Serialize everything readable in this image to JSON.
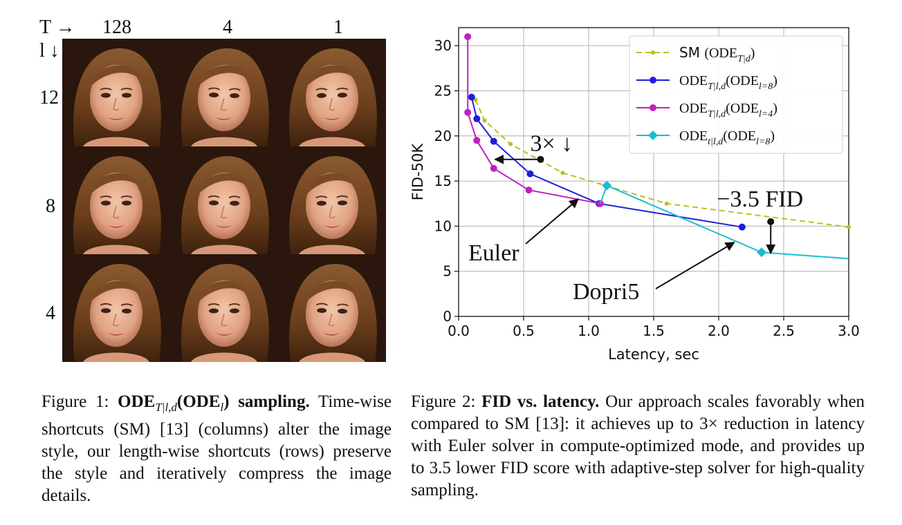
{
  "figure1": {
    "top_axis_label": "T →",
    "left_axis_label": "l ↓",
    "columns": [
      "128",
      "4",
      "1"
    ],
    "rows": [
      "12",
      "8",
      "4"
    ],
    "caption_number": "Figure 1:",
    "caption_title_main": "ODE",
    "caption_title_sub": "T|l,d",
    "caption_title_paren_main": "ODE",
    "caption_title_paren_sub": "l",
    "caption_title_tail": "sampling.",
    "caption_body": "Time-wise shortcuts (SM) [13] (columns) alter the image style, our length-wise shortcuts (rows) preserve the style and iteratively compress the image details."
  },
  "figure2": {
    "caption_number": "Figure 2:",
    "caption_title": "FID vs. latency.",
    "caption_body": "Our approach scales favorably when compared to SM [13]: it achieves up to 3× reduction in latency with Euler solver in compute-optimized mode, and provides up to 3.5 lower FID score with adaptive-step solver for high-quality sampling."
  },
  "chart_data": {
    "type": "line",
    "xlabel": "Latency, sec",
    "ylabel": "FID-50K",
    "xlim": [
      0.0,
      3.0
    ],
    "ylim": [
      0,
      32
    ],
    "xticks": [
      "0.0",
      "0.5",
      "1.0",
      "1.5",
      "2.0",
      "2.5",
      "3.0"
    ],
    "yticks": [
      "0",
      "5",
      "10",
      "15",
      "20",
      "25",
      "30"
    ],
    "grid": true,
    "legend_position": "top-right",
    "series": [
      {
        "name": "SM (ODE_{T|d})",
        "legend_main": "SM",
        "legend_paren": "(ODE",
        "legend_sub": "T|d",
        "legend_tail": ")",
        "color": "#bcbd22",
        "dashed": true,
        "marker": "small-circle",
        "x": [
          0.13,
          0.2,
          0.4,
          0.8,
          1.6,
          3.0
        ],
        "y": [
          24.0,
          21.7,
          19.1,
          15.9,
          12.5,
          9.9
        ]
      },
      {
        "name": "ODE_{T|l,d}(ODE_{l=8})",
        "legend_main": "ODE",
        "legend_sub": "T|l,d",
        "legend_paren": "(ODE",
        "legend_sub2": "l=8",
        "legend_tail": ")",
        "color": "#1f1fd6",
        "dashed": false,
        "marker": "circle",
        "x": [
          0.1,
          0.14,
          0.27,
          0.55,
          1.08,
          2.18
        ],
        "y": [
          24.3,
          21.9,
          19.4,
          15.8,
          12.5,
          9.9
        ]
      },
      {
        "name": "ODE_{T|l,d}(ODE_{l=4})",
        "legend_main": "ODE",
        "legend_sub": "T|l,d",
        "legend_paren": "(ODE",
        "legend_sub2": "l=4",
        "legend_tail": ")",
        "color": "#c020c0",
        "dashed": false,
        "marker": "circle",
        "x": [
          0.07,
          0.07,
          0.14,
          0.27,
          0.54,
          1.09
        ],
        "y": [
          31.0,
          22.6,
          19.5,
          16.4,
          14.0,
          12.5
        ]
      },
      {
        "name": "ODE_{t|l,d}(ODE_{l=8})",
        "legend_main": "ODE",
        "legend_sub": "t|l,d",
        "legend_paren": "(ODE",
        "legend_sub2": "l=8",
        "legend_tail": ")",
        "color": "#17becf",
        "dashed": false,
        "marker": "diamond",
        "x": [
          1.09,
          1.14,
          2.33,
          3.0
        ],
        "y": [
          12.5,
          14.5,
          7.1,
          6.4
        ],
        "marker_indices": [
          1,
          2
        ]
      }
    ],
    "annotations": [
      {
        "text": "3× ↓",
        "kind": "horizontal-arrow",
        "from": [
          0.63,
          17.4
        ],
        "to": [
          0.28,
          17.4
        ]
      },
      {
        "text": "−3.5 FID",
        "kind": "vertical-arrow",
        "from": [
          2.4,
          10.5
        ],
        "to": [
          2.4,
          7.0
        ]
      },
      {
        "text": "Euler",
        "kind": "pointer",
        "target": [
          0.92,
          13.0
        ]
      },
      {
        "text": "Dopri5",
        "kind": "pointer",
        "target": [
          2.12,
          8.2
        ]
      }
    ]
  }
}
